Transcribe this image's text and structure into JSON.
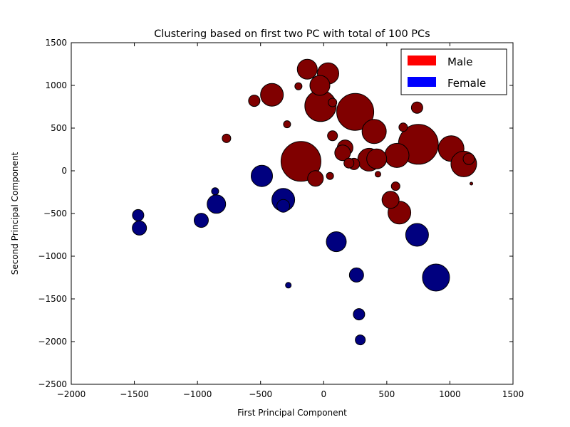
{
  "chart_data": {
    "type": "scatter",
    "title": "Clustering based on first two PC with total of 100 PCs",
    "xlabel": "First Principal Component",
    "ylabel": "Second Principal Component",
    "xlim": [
      -2000,
      1500
    ],
    "ylim": [
      -2500,
      1500
    ],
    "xticks": [
      -2000,
      -1500,
      -1000,
      -500,
      0,
      500,
      1000,
      1500
    ],
    "yticks": [
      -2500,
      -2000,
      -1500,
      -1000,
      -500,
      0,
      500,
      1000,
      1500
    ],
    "xtick_labels": [
      "−2000",
      "−1500",
      "−1000",
      "−500",
      "0",
      "500",
      "1000",
      "1500"
    ],
    "ytick_labels": [
      "−2500",
      "−2000",
      "−1500",
      "−1000",
      "−500",
      "0",
      "500",
      "1000",
      "1500"
    ],
    "grid": false,
    "legend": {
      "placement": "top-right",
      "entries": [
        {
          "label": "Male",
          "color": "#ff0000"
        },
        {
          "label": "Female",
          "color": "#0000ff"
        }
      ]
    },
    "series": [
      {
        "name": "Male",
        "color": "#800000",
        "points": [
          {
            "x": -130,
            "y": 1190,
            "size": 14
          },
          {
            "x": 35,
            "y": 1140,
            "size": 15
          },
          {
            "x": -410,
            "y": 890,
            "size": 16
          },
          {
            "x": -30,
            "y": 1000,
            "size": 14
          },
          {
            "x": -200,
            "y": 990,
            "size": 5
          },
          {
            "x": -550,
            "y": 820,
            "size": 8
          },
          {
            "x": -25,
            "y": 760,
            "size": 22
          },
          {
            "x": 70,
            "y": 800,
            "size": 6
          },
          {
            "x": 250,
            "y": 690,
            "size": 26
          },
          {
            "x": 740,
            "y": 740,
            "size": 8
          },
          {
            "x": -290,
            "y": 545,
            "size": 5
          },
          {
            "x": 400,
            "y": 460,
            "size": 17
          },
          {
            "x": 630,
            "y": 510,
            "size": 6
          },
          {
            "x": 70,
            "y": 410,
            "size": 7
          },
          {
            "x": -770,
            "y": 380,
            "size": 6
          },
          {
            "x": 170,
            "y": 270,
            "size": 11
          },
          {
            "x": 150,
            "y": 210,
            "size": 11
          },
          {
            "x": 750,
            "y": 310,
            "size": 28
          },
          {
            "x": 1010,
            "y": 260,
            "size": 18
          },
          {
            "x": 580,
            "y": 180,
            "size": 17
          },
          {
            "x": 360,
            "y": 130,
            "size": 16
          },
          {
            "x": 420,
            "y": 140,
            "size": 14
          },
          {
            "x": -180,
            "y": 110,
            "size": 28
          },
          {
            "x": 1150,
            "y": 140,
            "size": 8
          },
          {
            "x": 1110,
            "y": 80,
            "size": 18
          },
          {
            "x": 200,
            "y": 90,
            "size": 7
          },
          {
            "x": 240,
            "y": 80,
            "size": 8
          },
          {
            "x": -65,
            "y": -90,
            "size": 11
          },
          {
            "x": 50,
            "y": -60,
            "size": 5
          },
          {
            "x": 430,
            "y": -40,
            "size": 4
          },
          {
            "x": 570,
            "y": -180,
            "size": 6
          },
          {
            "x": 530,
            "y": -340,
            "size": 12
          },
          {
            "x": 600,
            "y": -490,
            "size": 16
          },
          {
            "x": 1170,
            "y": -150,
            "size": 2
          }
        ]
      },
      {
        "name": "Female",
        "color": "#00007f",
        "points": [
          {
            "x": -490,
            "y": -60,
            "size": 15
          },
          {
            "x": -860,
            "y": -240,
            "size": 5
          },
          {
            "x": -850,
            "y": -390,
            "size": 13
          },
          {
            "x": -320,
            "y": -410,
            "size": 9
          },
          {
            "x": -320,
            "y": -340,
            "size": 16
          },
          {
            "x": -1470,
            "y": -520,
            "size": 8
          },
          {
            "x": -1460,
            "y": -670,
            "size": 10
          },
          {
            "x": -970,
            "y": -580,
            "size": 10
          },
          {
            "x": 100,
            "y": -830,
            "size": 14
          },
          {
            "x": 740,
            "y": -750,
            "size": 16
          },
          {
            "x": 890,
            "y": -1250,
            "size": 19
          },
          {
            "x": -280,
            "y": -1340,
            "size": 4
          },
          {
            "x": 260,
            "y": -1220,
            "size": 10
          },
          {
            "x": 280,
            "y": -1680,
            "size": 8
          },
          {
            "x": 290,
            "y": -1980,
            "size": 7
          }
        ]
      }
    ]
  }
}
